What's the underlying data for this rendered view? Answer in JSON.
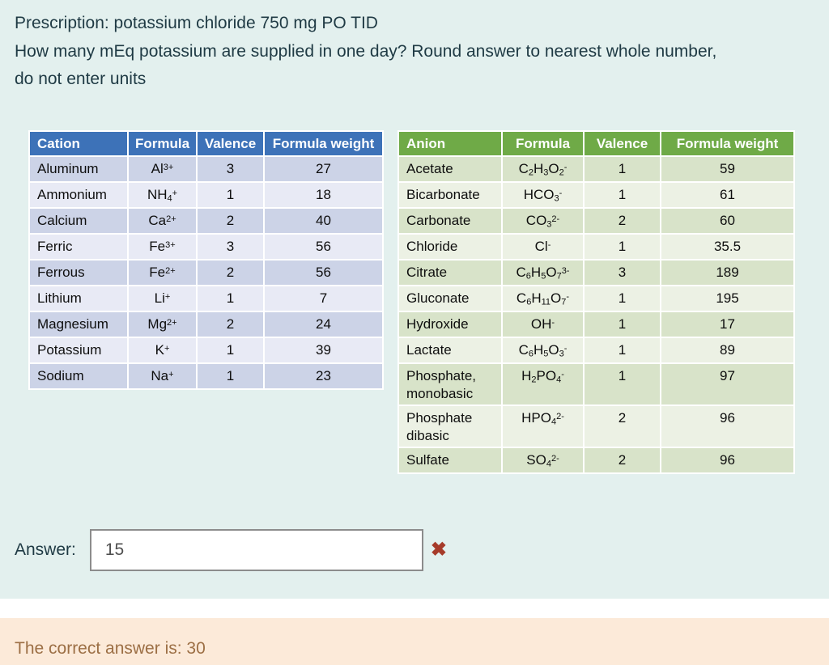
{
  "colors": {
    "page_bg": "#e3f0ee",
    "question_text": "#1f3a44",
    "incorrect": "#a63b2a",
    "feedback_bg": "#fcead9",
    "feedback_text": "#9c6f45",
    "cation_header": "#3d72b8",
    "anion_header": "#6faa47"
  },
  "question": {
    "lines": [
      "Prescription: potassium chloride 750 mg PO TID",
      "How many mEq potassium are supplied in one day? Round answer to nearest whole number,",
      "do not enter units"
    ]
  },
  "tables": {
    "cation": {
      "headers": [
        "Cation",
        "Formula",
        "Valence",
        "Formula weight"
      ],
      "header_bg": "#3d72b8",
      "stripe_colors": [
        "#ccd3e7",
        "#e8eaf5"
      ],
      "rows": [
        {
          "name": "Aluminum",
          "formula": [
            [
              "t",
              "Al"
            ],
            [
              "p",
              "3+"
            ]
          ],
          "valence": "3",
          "weight": "27"
        },
        {
          "name": "Ammonium",
          "formula": [
            [
              "t",
              "NH"
            ],
            [
              "s",
              "4"
            ],
            [
              "p",
              "+"
            ]
          ],
          "valence": "1",
          "weight": "18"
        },
        {
          "name": "Calcium",
          "formula": [
            [
              "t",
              "Ca"
            ],
            [
              "p",
              "2+"
            ]
          ],
          "valence": "2",
          "weight": "40"
        },
        {
          "name": "Ferric",
          "formula": [
            [
              "t",
              "Fe"
            ],
            [
              "p",
              "3+"
            ]
          ],
          "valence": "3",
          "weight": "56"
        },
        {
          "name": "Ferrous",
          "formula": [
            [
              "t",
              "Fe"
            ],
            [
              "p",
              "2+"
            ]
          ],
          "valence": "2",
          "weight": "56"
        },
        {
          "name": "Lithium",
          "formula": [
            [
              "t",
              "Li"
            ],
            [
              "p",
              "+"
            ]
          ],
          "valence": "1",
          "weight": "7"
        },
        {
          "name": "Magnesium",
          "formula": [
            [
              "t",
              "Mg"
            ],
            [
              "p",
              "2+"
            ]
          ],
          "valence": "2",
          "weight": "24"
        },
        {
          "name": "Potassium",
          "formula": [
            [
              "t",
              "K"
            ],
            [
              "p",
              "+"
            ]
          ],
          "valence": "1",
          "weight": "39"
        },
        {
          "name": "Sodium",
          "formula": [
            [
              "t",
              "Na"
            ],
            [
              "p",
              "+"
            ]
          ],
          "valence": "1",
          "weight": "23"
        }
      ]
    },
    "anion": {
      "headers": [
        "Anion",
        "Formula",
        "Valence",
        "Formula weight"
      ],
      "header_bg": "#6faa47",
      "stripe_colors": [
        "#d8e3c9",
        "#ecf1e4"
      ],
      "rows": [
        {
          "name": "Acetate",
          "formula": [
            [
              "t",
              "C"
            ],
            [
              "s",
              "2"
            ],
            [
              "t",
              "H"
            ],
            [
              "s",
              "3"
            ],
            [
              "t",
              "O"
            ],
            [
              "s",
              "2"
            ],
            [
              "p",
              "-"
            ]
          ],
          "valence": "1",
          "weight": "59"
        },
        {
          "name": "Bicarbonate",
          "formula": [
            [
              "t",
              "HCO"
            ],
            [
              "s",
              "3"
            ],
            [
              "p",
              "-"
            ]
          ],
          "valence": "1",
          "weight": "61"
        },
        {
          "name": "Carbonate",
          "formula": [
            [
              "t",
              "CO"
            ],
            [
              "s",
              "3"
            ],
            [
              "p",
              "2-"
            ]
          ],
          "valence": "2",
          "weight": "60"
        },
        {
          "name": "Chloride",
          "formula": [
            [
              "t",
              "Cl"
            ],
            [
              "p",
              "-"
            ]
          ],
          "valence": "1",
          "weight": "35.5"
        },
        {
          "name": "Citrate",
          "formula": [
            [
              "t",
              "C"
            ],
            [
              "s",
              "6"
            ],
            [
              "t",
              "H"
            ],
            [
              "s",
              "5"
            ],
            [
              "t",
              "O"
            ],
            [
              "s",
              "7"
            ],
            [
              "p",
              "3-"
            ]
          ],
          "valence": "3",
          "weight": "189"
        },
        {
          "name": "Gluconate",
          "formula": [
            [
              "t",
              "C"
            ],
            [
              "s",
              "6"
            ],
            [
              "t",
              "H"
            ],
            [
              "s",
              "11"
            ],
            [
              "t",
              "O"
            ],
            [
              "s",
              "7"
            ],
            [
              "p",
              "-"
            ]
          ],
          "valence": "1",
          "weight": "195"
        },
        {
          "name": "Hydroxide",
          "formula": [
            [
              "t",
              "OH"
            ],
            [
              "p",
              "-"
            ]
          ],
          "valence": "1",
          "weight": "17"
        },
        {
          "name": "Lactate",
          "formula": [
            [
              "t",
              "C"
            ],
            [
              "s",
              "6"
            ],
            [
              "t",
              "H"
            ],
            [
              "s",
              "5"
            ],
            [
              "t",
              "O"
            ],
            [
              "s",
              "3"
            ],
            [
              "p",
              "-"
            ]
          ],
          "valence": "1",
          "weight": "89"
        },
        {
          "name": "Phosphate, monobasic",
          "formula": [
            [
              "t",
              "H"
            ],
            [
              "s",
              "2"
            ],
            [
              "t",
              "PO"
            ],
            [
              "s",
              "4"
            ],
            [
              "p",
              "-"
            ]
          ],
          "valence": "1",
          "weight": "97"
        },
        {
          "name": "Phosphate dibasic",
          "formula": [
            [
              "t",
              "HPO"
            ],
            [
              "s",
              "4"
            ],
            [
              "p",
              "2-"
            ]
          ],
          "valence": "2",
          "weight": "96"
        },
        {
          "name": "Sulfate",
          "formula": [
            [
              "t",
              "SO"
            ],
            [
              "s",
              "4"
            ],
            [
              "p",
              "2-"
            ]
          ],
          "valence": "2",
          "weight": "96"
        }
      ]
    }
  },
  "answer": {
    "label": "Answer:",
    "value": "15",
    "incorrect_icon": "✖"
  },
  "feedback": {
    "text": "The correct answer is: 30"
  }
}
